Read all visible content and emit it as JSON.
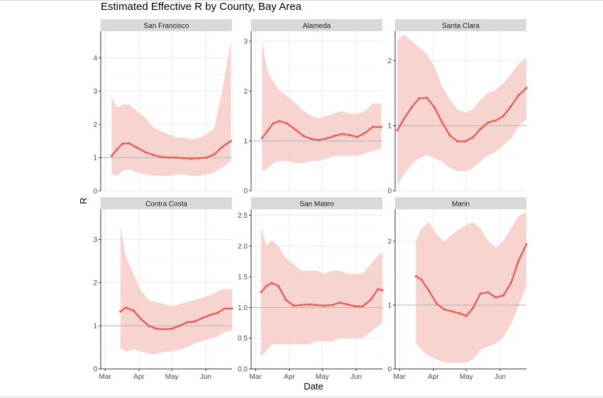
{
  "chart_data": {
    "type": "line",
    "title": "Estimated Effective R by County, Bay Area",
    "xlabel": "Date",
    "ylabel": "R",
    "x_tick_labels": [
      "Mar",
      "Apr",
      "May",
      "Jun"
    ],
    "x_ticks": [
      "2020-03-01",
      "2020-04-01",
      "2020-05-01",
      "2020-06-01"
    ],
    "xlim": [
      "2020-02-26",
      "2020-06-25"
    ],
    "reference_line": 1,
    "grid": true,
    "colors": {
      "line": "#e0625a",
      "band": "#f7cdc8",
      "strip": "#d9d9d9",
      "grid": "#ebebeb",
      "reference": "#b3b3b3",
      "axis": "#333333"
    },
    "panels": [
      {
        "name": "San Francisco",
        "ylim": [
          0,
          4.8
        ],
        "y_ticks": [
          "0",
          "1",
          "2",
          "3",
          "4"
        ],
        "series": [
          {
            "x": [
              "2020-03-07",
              "2020-03-12",
              "2020-03-17",
              "2020-03-23",
              "2020-03-30",
              "2020-04-07",
              "2020-04-14",
              "2020-04-21",
              "2020-04-28",
              "2020-05-05",
              "2020-05-12",
              "2020-05-19",
              "2020-05-26",
              "2020-06-02",
              "2020-06-09",
              "2020-06-16",
              "2020-06-24"
            ],
            "y": [
              1.05,
              1.25,
              1.42,
              1.43,
              1.3,
              1.16,
              1.08,
              1.02,
              1.0,
              1.0,
              0.98,
              0.97,
              0.98,
              1.0,
              1.1,
              1.32,
              1.5
            ],
            "lower": [
              0.5,
              0.45,
              0.6,
              0.65,
              0.55,
              0.5,
              0.45,
              0.45,
              0.45,
              0.5,
              0.5,
              0.45,
              0.45,
              0.5,
              0.55,
              0.7,
              0.9
            ],
            "upper": [
              2.8,
              2.5,
              2.6,
              2.6,
              2.4,
              2.2,
              1.9,
              1.8,
              1.7,
              1.6,
              1.6,
              1.55,
              1.6,
              1.7,
              1.9,
              3.0,
              4.5
            ]
          }
        ]
      },
      {
        "name": "Alameda",
        "ylim": [
          0,
          3.2
        ],
        "y_ticks": [
          "0",
          "1",
          "2",
          "3"
        ],
        "series": [
          {
            "x": [
              "2020-03-07",
              "2020-03-12",
              "2020-03-17",
              "2020-03-23",
              "2020-03-30",
              "2020-04-07",
              "2020-04-14",
              "2020-04-21",
              "2020-04-28",
              "2020-05-05",
              "2020-05-12",
              "2020-05-19",
              "2020-05-26",
              "2020-06-02",
              "2020-06-09",
              "2020-06-16",
              "2020-06-24"
            ],
            "y": [
              1.06,
              1.2,
              1.35,
              1.4,
              1.35,
              1.22,
              1.1,
              1.04,
              1.02,
              1.05,
              1.1,
              1.14,
              1.12,
              1.08,
              1.16,
              1.28,
              1.28
            ],
            "lower": [
              0.4,
              0.45,
              0.55,
              0.6,
              0.6,
              0.55,
              0.55,
              0.6,
              0.6,
              0.65,
              0.7,
              0.7,
              0.7,
              0.7,
              0.75,
              0.8,
              0.85
            ],
            "upper": [
              3.0,
              2.4,
              2.2,
              2.0,
              1.9,
              1.75,
              1.6,
              1.5,
              1.45,
              1.5,
              1.55,
              1.6,
              1.55,
              1.55,
              1.6,
              1.75,
              1.75
            ]
          }
        ]
      },
      {
        "name": "Santa Clara",
        "ylim": [
          0,
          2.45
        ],
        "y_ticks": [
          "0",
          "1",
          "2"
        ],
        "series": [
          {
            "x": [
              "2020-02-28",
              "2020-03-05",
              "2020-03-12",
              "2020-03-19",
              "2020-03-26",
              "2020-04-02",
              "2020-04-09",
              "2020-04-16",
              "2020-04-23",
              "2020-04-30",
              "2020-05-07",
              "2020-05-14",
              "2020-05-21",
              "2020-05-28",
              "2020-06-04",
              "2020-06-11",
              "2020-06-18",
              "2020-06-25"
            ],
            "y": [
              0.93,
              1.1,
              1.28,
              1.42,
              1.43,
              1.28,
              1.05,
              0.85,
              0.76,
              0.76,
              0.82,
              0.95,
              1.05,
              1.08,
              1.15,
              1.3,
              1.47,
              1.58
            ],
            "lower": [
              0.1,
              0.25,
              0.4,
              0.5,
              0.55,
              0.5,
              0.45,
              0.35,
              0.3,
              0.3,
              0.35,
              0.45,
              0.55,
              0.6,
              0.7,
              0.8,
              1.0,
              1.1
            ],
            "upper": [
              2.3,
              2.4,
              2.3,
              2.2,
              2.1,
              1.9,
              1.6,
              1.4,
              1.25,
              1.2,
              1.25,
              1.4,
              1.5,
              1.55,
              1.65,
              1.8,
              1.95,
              2.05
            ]
          }
        ]
      },
      {
        "name": "Contra Costa",
        "ylim": [
          0,
          3.7
        ],
        "y_ticks": [
          "0",
          "1",
          "2",
          "3"
        ],
        "series": [
          {
            "x": [
              "2020-03-15",
              "2020-03-20",
              "2020-03-27",
              "2020-04-03",
              "2020-04-10",
              "2020-04-17",
              "2020-04-24",
              "2020-05-01",
              "2020-05-08",
              "2020-05-15",
              "2020-05-22",
              "2020-05-29",
              "2020-06-05",
              "2020-06-12",
              "2020-06-18",
              "2020-06-25"
            ],
            "y": [
              1.33,
              1.42,
              1.35,
              1.15,
              1.0,
              0.93,
              0.92,
              0.93,
              1.0,
              1.08,
              1.1,
              1.18,
              1.25,
              1.3,
              1.4,
              1.4
            ],
            "lower": [
              0.5,
              0.4,
              0.45,
              0.4,
              0.35,
              0.35,
              0.4,
              0.4,
              0.45,
              0.5,
              0.6,
              0.65,
              0.7,
              0.75,
              0.85,
              0.9
            ],
            "upper": [
              3.3,
              2.6,
              2.2,
              1.8,
              1.6,
              1.55,
              1.5,
              1.45,
              1.5,
              1.55,
              1.6,
              1.65,
              1.7,
              1.8,
              1.85,
              1.85
            ]
          }
        ]
      },
      {
        "name": "San Mateo",
        "ylim": [
          0,
          2.6
        ],
        "y_ticks": [
          "0.0",
          "0.5",
          "1.0",
          "1.5",
          "2.0",
          "2.5"
        ],
        "series": [
          {
            "x": [
              "2020-03-06",
              "2020-03-11",
              "2020-03-16",
              "2020-03-22",
              "2020-03-29",
              "2020-04-05",
              "2020-04-12",
              "2020-04-19",
              "2020-04-26",
              "2020-05-03",
              "2020-05-10",
              "2020-05-17",
              "2020-05-24",
              "2020-05-31",
              "2020-06-07",
              "2020-06-14",
              "2020-06-21",
              "2020-06-25"
            ],
            "y": [
              1.25,
              1.35,
              1.4,
              1.35,
              1.12,
              1.03,
              1.04,
              1.05,
              1.04,
              1.03,
              1.04,
              1.08,
              1.05,
              1.02,
              1.02,
              1.12,
              1.3,
              1.28
            ],
            "lower": [
              0.2,
              0.3,
              0.4,
              0.4,
              0.4,
              0.4,
              0.4,
              0.4,
              0.45,
              0.45,
              0.45,
              0.5,
              0.5,
              0.5,
              0.5,
              0.6,
              0.7,
              0.75
            ],
            "upper": [
              2.3,
              2.0,
              2.1,
              2.0,
              1.8,
              1.7,
              1.6,
              1.6,
              1.6,
              1.55,
              1.6,
              1.6,
              1.55,
              1.55,
              1.55,
              1.7,
              1.85,
              1.9
            ]
          }
        ]
      },
      {
        "name": "Marin",
        "ylim": [
          0,
          2.5
        ],
        "y_ticks": [
          "0",
          "1",
          "2"
        ],
        "series": [
          {
            "x": [
              "2020-03-16",
              "2020-03-21",
              "2020-03-28",
              "2020-04-04",
              "2020-04-11",
              "2020-04-18",
              "2020-04-25",
              "2020-05-01",
              "2020-05-07",
              "2020-05-14",
              "2020-05-21",
              "2020-05-28",
              "2020-06-04",
              "2020-06-11",
              "2020-06-18",
              "2020-06-25"
            ],
            "y": [
              1.45,
              1.4,
              1.22,
              1.02,
              0.93,
              0.9,
              0.87,
              0.83,
              0.95,
              1.18,
              1.2,
              1.12,
              1.15,
              1.35,
              1.7,
              1.95
            ],
            "lower": [
              0.4,
              0.3,
              0.2,
              0.15,
              0.1,
              0.1,
              0.1,
              0.1,
              0.15,
              0.3,
              0.35,
              0.4,
              0.5,
              0.7,
              1.0,
              1.3
            ],
            "upper": [
              2.0,
              2.2,
              2.3,
              2.1,
              2.0,
              2.1,
              2.2,
              2.25,
              2.3,
              2.2,
              2.0,
              1.9,
              2.0,
              2.2,
              2.4,
              2.45
            ]
          }
        ]
      }
    ]
  }
}
